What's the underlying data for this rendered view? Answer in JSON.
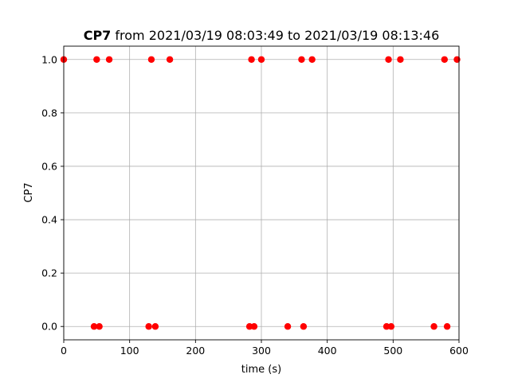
{
  "chart_data": {
    "type": "scatter",
    "title_bold": "CP7",
    "title_rest": " from 2021/03/19 08:03:49 to 2021/03/19 08:13:46",
    "xlabel": "time (s)",
    "ylabel": "CP7",
    "xlim": [
      0,
      600
    ],
    "ylim": [
      -0.05,
      1.05
    ],
    "xticks": [
      0,
      100,
      200,
      300,
      400,
      500,
      600
    ],
    "yticks": [
      0.0,
      0.2,
      0.4,
      0.6,
      0.8,
      1.0
    ],
    "xtick_labels": [
      "0",
      "100",
      "200",
      "300",
      "400",
      "500",
      "600"
    ],
    "ytick_labels": [
      "0.0",
      "0.2",
      "0.4",
      "0.6",
      "0.8",
      "1.0"
    ],
    "grid": true,
    "marker_color": "#ff0000",
    "series": [
      {
        "x": [
          0,
          46,
          50,
          54,
          69,
          129,
          133,
          139,
          161,
          282,
          285,
          289,
          300,
          340,
          361,
          364,
          377,
          490,
          493,
          497,
          511,
          562,
          578,
          582,
          597
        ],
        "y": [
          1,
          0,
          1,
          0,
          1,
          0,
          1,
          0,
          1,
          0,
          1,
          0,
          1,
          0,
          1,
          0,
          1,
          0,
          1,
          0,
          1,
          0,
          1,
          0,
          1
        ]
      }
    ]
  }
}
